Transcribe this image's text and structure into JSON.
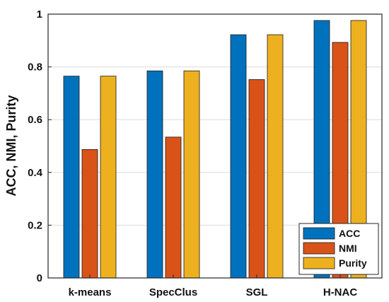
{
  "chart_data": {
    "type": "bar",
    "categories": [
      "k-means",
      "SpecClus",
      "SGL",
      "H-NAC"
    ],
    "series": [
      {
        "name": "ACC",
        "values": [
          0.765,
          0.785,
          0.922,
          0.976
        ],
        "color": "#0072BD"
      },
      {
        "name": "NMI",
        "values": [
          0.487,
          0.534,
          0.752,
          0.893
        ],
        "color": "#D95319"
      },
      {
        "name": "Purity",
        "values": [
          0.765,
          0.785,
          0.922,
          0.976
        ],
        "color": "#EDB120"
      }
    ],
    "ylabel": "ACC, NMI, Purity",
    "xlabel": "",
    "ylim": [
      0,
      1
    ],
    "yticks": [
      0,
      0.2,
      0.4,
      0.6,
      0.8,
      1
    ],
    "ytick_labels": [
      "0",
      "0.2",
      "0.4",
      "0.6",
      "0.8",
      "1"
    ],
    "grid": true,
    "legend_position": "bottom-right"
  }
}
